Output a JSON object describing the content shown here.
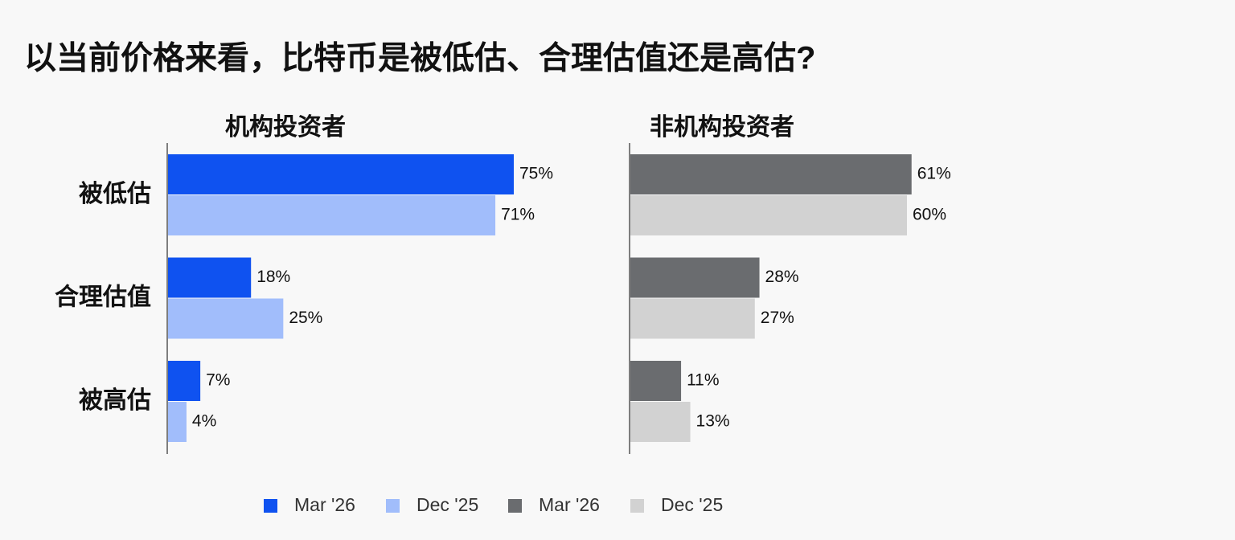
{
  "title": "以当前价格来看，比特币是被低估、合理估值还是高估?",
  "chart_data": [
    {
      "type": "bar",
      "orientation": "horizontal",
      "title": "机构投资者",
      "categories": [
        "被低估",
        "合理估值",
        "被高估"
      ],
      "series": [
        {
          "name": "Mar '26",
          "color": "#0f52f0",
          "values": [
            75,
            18,
            7
          ],
          "value_labels": [
            "75%",
            "18%",
            "7%"
          ]
        },
        {
          "name": "Dec '25",
          "color": "#a1bdfb",
          "values": [
            71,
            25,
            4
          ],
          "value_labels": [
            "71%",
            "25%",
            "4%"
          ]
        }
      ]
    },
    {
      "type": "bar",
      "orientation": "horizontal",
      "title": "非机构投资者",
      "series": [
        {
          "name": "Mar '26",
          "color": "#6a6c6f",
          "values": [
            61,
            28,
            11
          ],
          "value_labels": [
            "61%",
            "28%",
            "11%"
          ]
        },
        {
          "name": "Dec '25",
          "color": "#d2d2d2",
          "values": [
            60,
            27,
            13
          ],
          "value_labels": [
            "60%",
            "27%",
            "13%"
          ]
        }
      ]
    }
  ]
}
